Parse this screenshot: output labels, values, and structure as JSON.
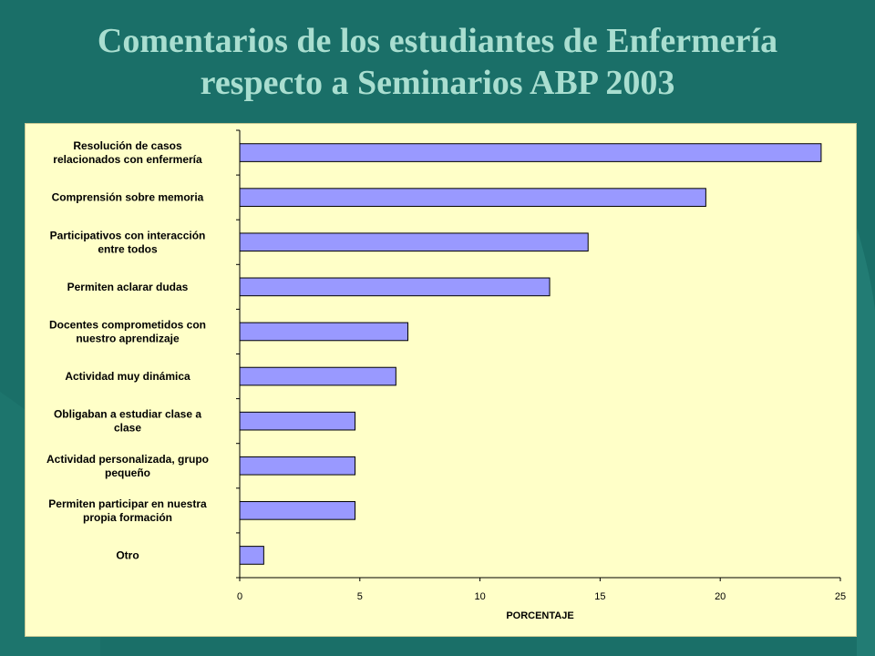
{
  "slide": {
    "title_line1": "Comentarios de los estudiantes de Enfermería",
    "title_line2": "respecto a Seminarios ABP 2003"
  },
  "colors": {
    "background": "#1a6f68",
    "title": "#a9ded0",
    "plot_area": "#ffffc8",
    "bar_fill": "#9999ff",
    "bar_stroke": "#000000"
  },
  "chart_data": {
    "type": "bar",
    "orientation": "horizontal",
    "categories": [
      [
        "Resolución de casos",
        "relacionados con enfermería"
      ],
      [
        "Comprensión sobre memoria"
      ],
      [
        "Participativos con interacción",
        "entre todos"
      ],
      [
        "Permiten aclarar dudas"
      ],
      [
        "Docentes comprometidos con",
        "nuestro aprendizaje"
      ],
      [
        "Actividad muy dinámica"
      ],
      [
        "Obligaban a estudiar clase a",
        "clase"
      ],
      [
        "Actividad personalizada, grupo",
        "pequeño"
      ],
      [
        "Permiten participar en nuestra",
        "propia formación"
      ],
      [
        "Otro"
      ]
    ],
    "values": [
      24.2,
      19.4,
      14.5,
      12.9,
      7.0,
      6.5,
      4.8,
      4.8,
      4.8,
      1.0
    ],
    "xlabel": "PORCENTAJE",
    "xlim": [
      0,
      25
    ],
    "xticks": [
      0,
      5,
      10,
      15,
      20,
      25
    ],
    "grid": false,
    "legend": "none"
  }
}
